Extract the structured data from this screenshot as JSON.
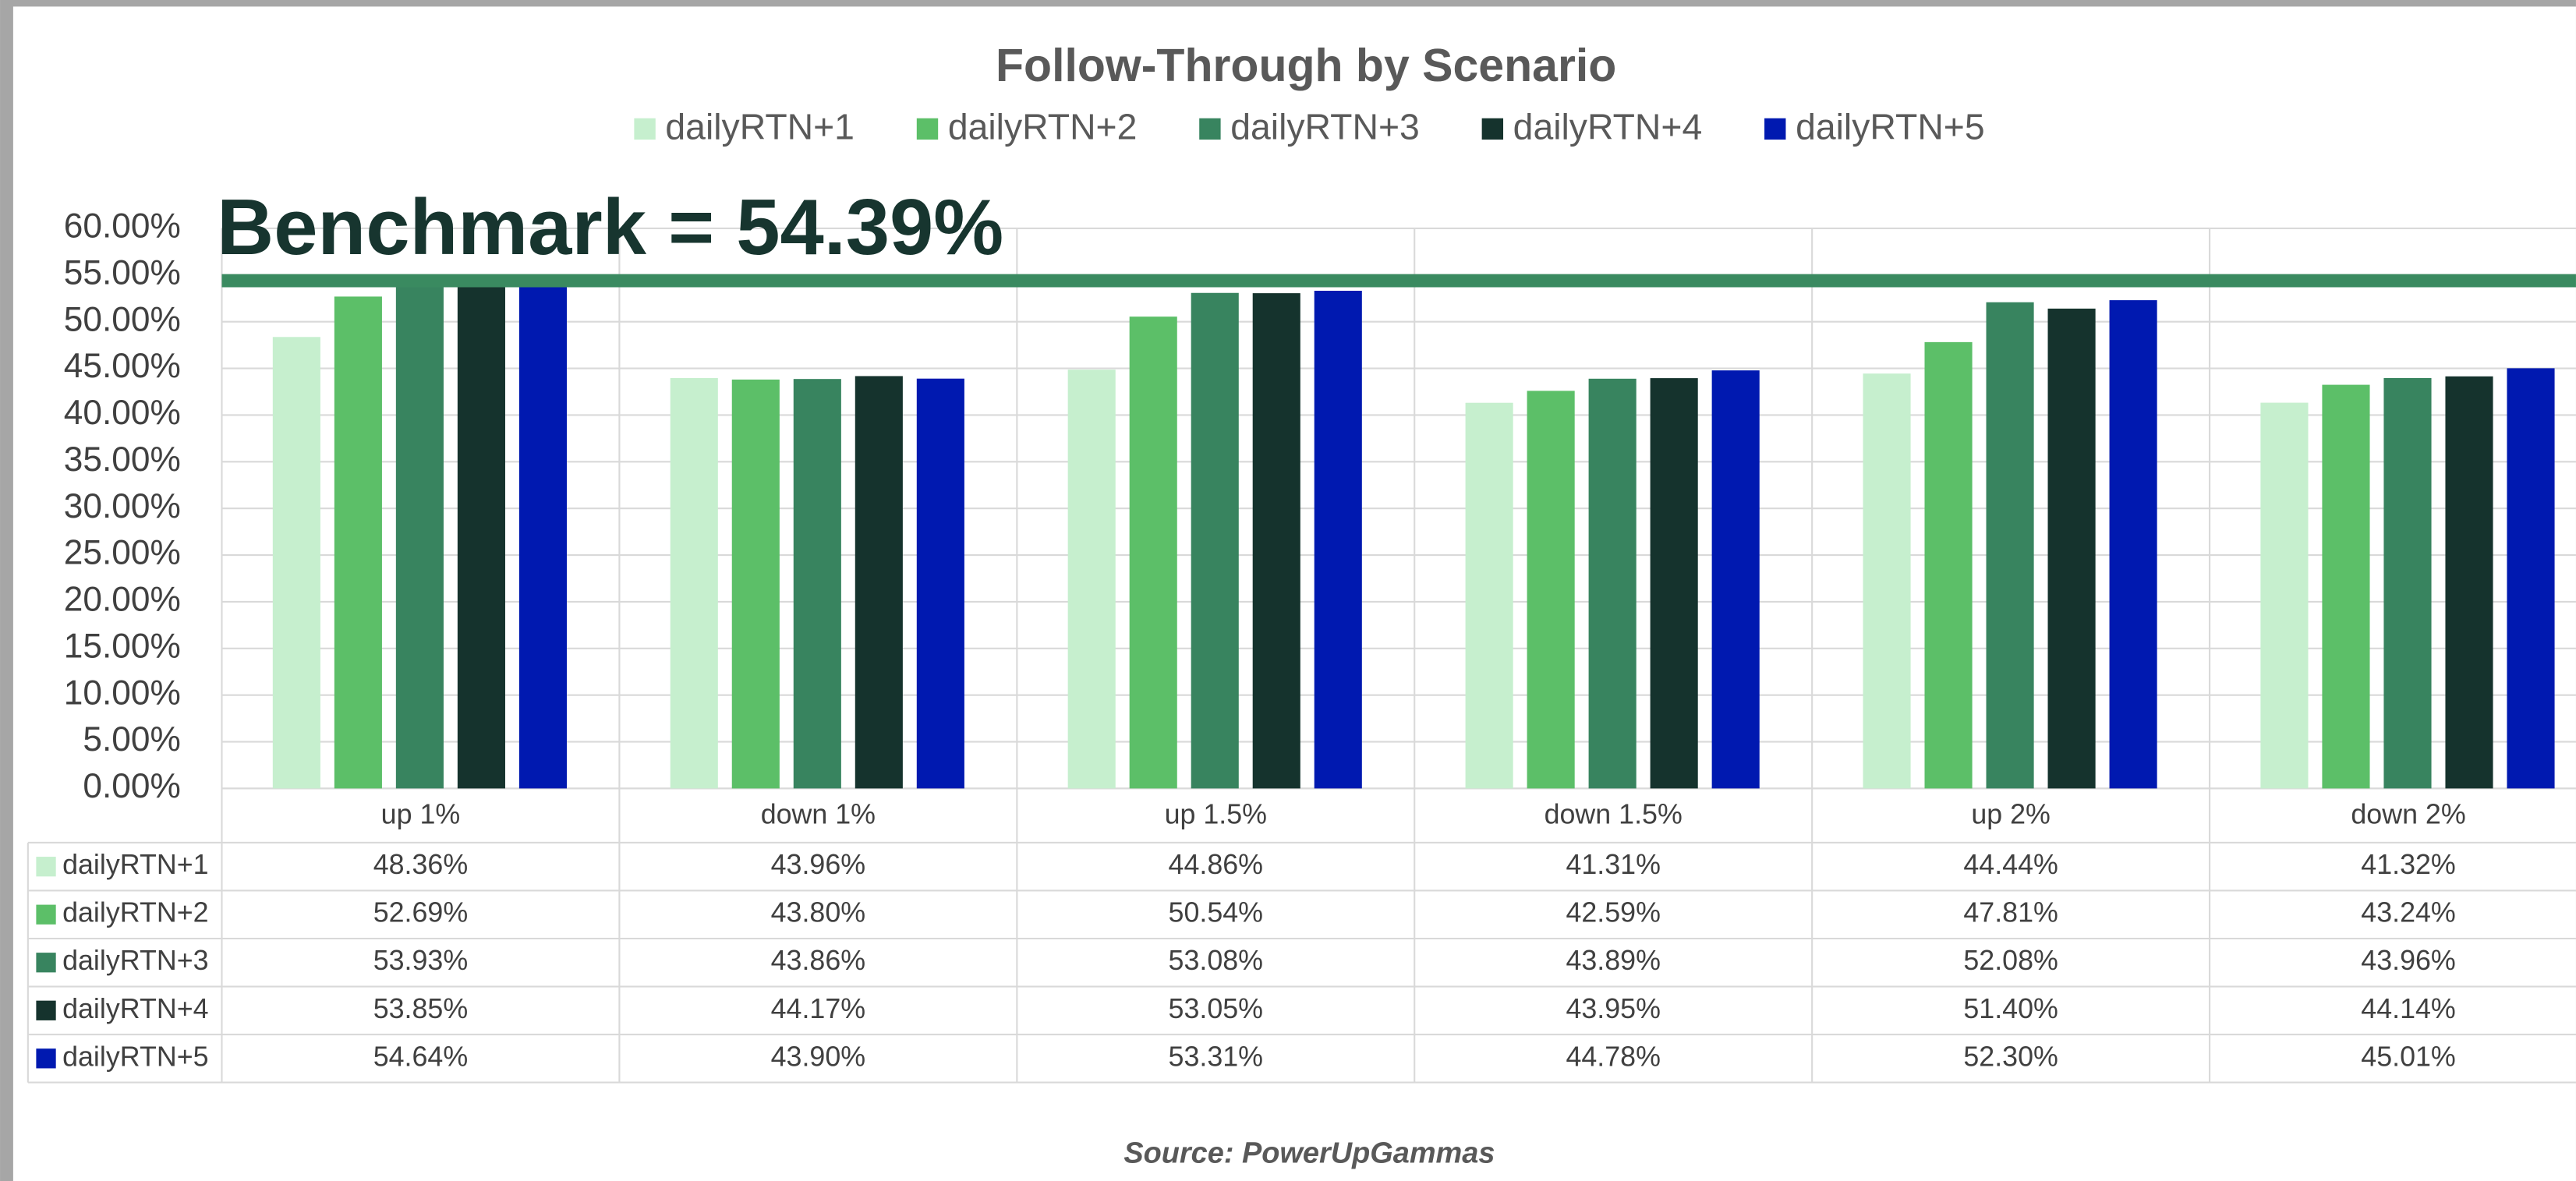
{
  "chart_data": {
    "type": "bar",
    "title": "Follow-Through by Scenario",
    "categories": [
      "up 1%",
      "down 1%",
      "up 1.5%",
      "down 1.5%",
      "up 2%",
      "down 2%"
    ],
    "series": [
      {
        "name": "dailyRTN+1",
        "color": "#c6efce",
        "values": [
          48.36,
          43.96,
          44.86,
          41.31,
          44.44,
          41.32
        ],
        "value_labels": [
          "48.36%",
          "43.96%",
          "44.86%",
          "41.31%",
          "44.44%",
          "41.32%"
        ]
      },
      {
        "name": "dailyRTN+2",
        "color": "#5cbf68",
        "values": [
          52.69,
          43.8,
          50.54,
          42.59,
          47.81,
          43.24
        ],
        "value_labels": [
          "52.69%",
          "43.80%",
          "50.54%",
          "42.59%",
          "47.81%",
          "43.24%"
        ]
      },
      {
        "name": "dailyRTN+3",
        "color": "#38845f",
        "values": [
          53.93,
          43.86,
          53.08,
          43.89,
          52.08,
          43.96
        ],
        "value_labels": [
          "53.93%",
          "43.86%",
          "53.08%",
          "43.89%",
          "52.08%",
          "43.96%"
        ]
      },
      {
        "name": "dailyRTN+4",
        "color": "#15332d",
        "values": [
          53.85,
          44.17,
          53.05,
          43.95,
          51.4,
          44.14
        ],
        "value_labels": [
          "53.85%",
          "44.17%",
          "53.05%",
          "43.95%",
          "51.40%",
          "44.14%"
        ]
      },
      {
        "name": "dailyRTN+5",
        "color": "#0019b0",
        "values": [
          54.64,
          43.9,
          53.31,
          44.78,
          52.3,
          45.01
        ],
        "value_labels": [
          "54.64%",
          "43.90%",
          "53.31%",
          "44.78%",
          "52.30%",
          "45.01%"
        ]
      }
    ],
    "ylim": [
      0,
      60
    ],
    "yticks": [
      {
        "value": 0,
        "label": "0.00%"
      },
      {
        "value": 5,
        "label": "5.00%"
      },
      {
        "value": 10,
        "label": "10.00%"
      },
      {
        "value": 15,
        "label": "15.00%"
      },
      {
        "value": 20,
        "label": "20.00%"
      },
      {
        "value": 25,
        "label": "25.00%"
      },
      {
        "value": 30,
        "label": "30.00%"
      },
      {
        "value": 35,
        "label": "35.00%"
      },
      {
        "value": 40,
        "label": "40.00%"
      },
      {
        "value": 45,
        "label": "45.00%"
      },
      {
        "value": 50,
        "label": "50.00%"
      },
      {
        "value": 55,
        "label": "55.00%"
      },
      {
        "value": 60,
        "label": "60.00%"
      }
    ],
    "grid": true,
    "legend": "top",
    "benchmark": {
      "value": 54.39,
      "label": "Benchmark = 54.39%",
      "color": "#3a8a60"
    },
    "source": "Source: PowerUpGammas"
  }
}
